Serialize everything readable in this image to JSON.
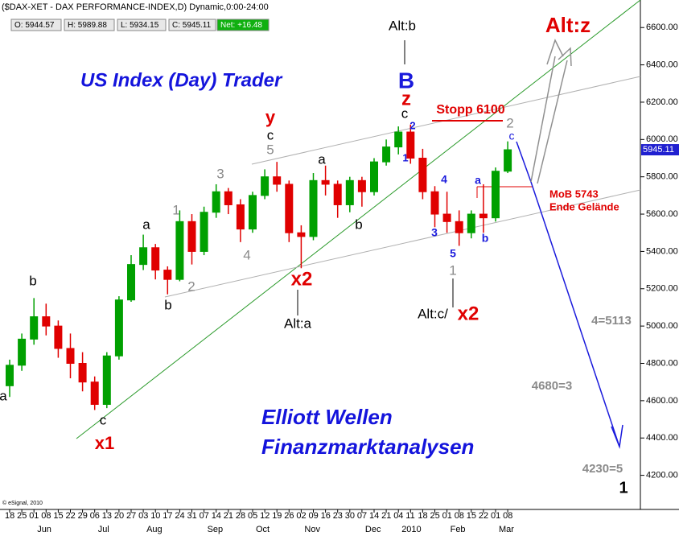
{
  "chart_data": {
    "type": "candlestick",
    "title": "($DAX-XET - DAX PERFORMANCE-INDEX,D) Dynamic,0:00-24:00",
    "header": [
      "O: 5944.57",
      "H: 5989.88",
      "L: 5934.15",
      "C: 5945.11",
      "Net: +16.48"
    ],
    "categories": [
      "18",
      "25",
      "01",
      "08",
      "15",
      "22",
      "29",
      "06",
      "13",
      "20",
      "27",
      "03",
      "10",
      "17",
      "24",
      "31",
      "07",
      "14",
      "21",
      "28",
      "05",
      "12",
      "19",
      "26",
      "02",
      "09",
      "16",
      "23",
      "30",
      "07",
      "14",
      "21",
      "04",
      "11",
      "18",
      "25",
      "01",
      "08",
      "15",
      "22",
      "01",
      "08"
    ],
    "months": [
      "Jun",
      "Jul",
      "Aug",
      "Sep",
      "Oct",
      "Nov",
      "Dec",
      "2010",
      "Feb",
      "Mar"
    ],
    "open": [
      4680,
      4790,
      4930,
      5050,
      5000,
      4880,
      4800,
      4700,
      4580,
      4840,
      5140,
      5330,
      5420,
      5300,
      5250,
      5560,
      5400,
      5610,
      5720,
      5650,
      5520,
      5700,
      5800,
      5760,
      5500,
      5480,
      5780,
      5760,
      5650,
      5780,
      5720,
      5880,
      5960,
      6040,
      5900,
      5720,
      5600,
      5560,
      5500,
      5600,
      5580,
      5830
    ],
    "high": [
      4820,
      4960,
      5150,
      5120,
      5030,
      4960,
      4860,
      4730,
      4860,
      5160,
      5380,
      5490,
      5440,
      5320,
      5620,
      5600,
      5640,
      5760,
      5740,
      5680,
      5720,
      5840,
      5880,
      5780,
      5540,
      5820,
      5860,
      5780,
      5800,
      5800,
      5900,
      6000,
      6070,
      6080,
      5950,
      5750,
      5720,
      5620,
      5620,
      5760,
      5850,
      5989.88
    ],
    "low": [
      4620,
      4760,
      4900,
      4950,
      4830,
      4720,
      4650,
      4550,
      4560,
      4820,
      5130,
      5300,
      5250,
      5170,
      5240,
      5330,
      5380,
      5580,
      5600,
      5450,
      5500,
      5680,
      5720,
      5450,
      5310,
      5460,
      5700,
      5580,
      5610,
      5640,
      5700,
      5860,
      5920,
      5870,
      5680,
      5530,
      5500,
      5430,
      5470,
      5500,
      5560,
      5820
    ],
    "close": [
      4790,
      4930,
      5050,
      5000,
      4880,
      4800,
      4700,
      4580,
      4840,
      5140,
      5330,
      5420,
      5300,
      5250,
      5560,
      5400,
      5610,
      5720,
      5650,
      5520,
      5700,
      5800,
      5760,
      5500,
      5480,
      5780,
      5760,
      5650,
      5780,
      5720,
      5880,
      5960,
      6040,
      5900,
      5720,
      5600,
      5560,
      5500,
      5600,
      5580,
      5830,
      5945.11
    ],
    "up_color": "#00a000",
    "down_color": "#e00000",
    "ylim": [
      4030,
      6670
    ],
    "yticks": [
      {
        "value": 4200,
        "label": "4200.00"
      },
      {
        "value": 4400,
        "label": "4400.00"
      },
      {
        "value": 4600,
        "label": "4600.00"
      },
      {
        "value": 4800,
        "label": "4800.00"
      },
      {
        "value": 5000,
        "label": "5000.00"
      },
      {
        "value": 5200,
        "label": "5200.00"
      },
      {
        "value": 5400,
        "label": "5400.00"
      },
      {
        "value": 5600,
        "label": "5600.00"
      },
      {
        "value": 5800,
        "label": "5800.00"
      },
      {
        "value": 6000,
        "label": "6000.00"
      },
      {
        "value": 6200,
        "label": "6200.00"
      },
      {
        "value": 6400,
        "label": "6400.00"
      },
      {
        "value": 6600,
        "label": "6600.00"
      }
    ],
    "annotations": [
      "US Index (Day) Trader",
      "Elliott Wellen",
      "Finanzmarktanalysen",
      "Alt:b",
      "B",
      "z",
      "c",
      "2",
      "1",
      "Stopp 6100",
      "2",
      "c",
      "Alt:z",
      "y",
      "c",
      "5",
      "3",
      "a",
      "a",
      "1",
      "b",
      "a",
      "4",
      "2",
      "b",
      "x2",
      "Alt:a",
      "b",
      "4",
      "a",
      "3",
      "5",
      "b",
      "1",
      "Alt:c/",
      "x2",
      "c",
      "x1",
      "MoB 5743",
      "Ende Gelände",
      "4=5113",
      "4680=3",
      "4230=5",
      "1",
      "© eSignal, 2010"
    ]
  }
}
